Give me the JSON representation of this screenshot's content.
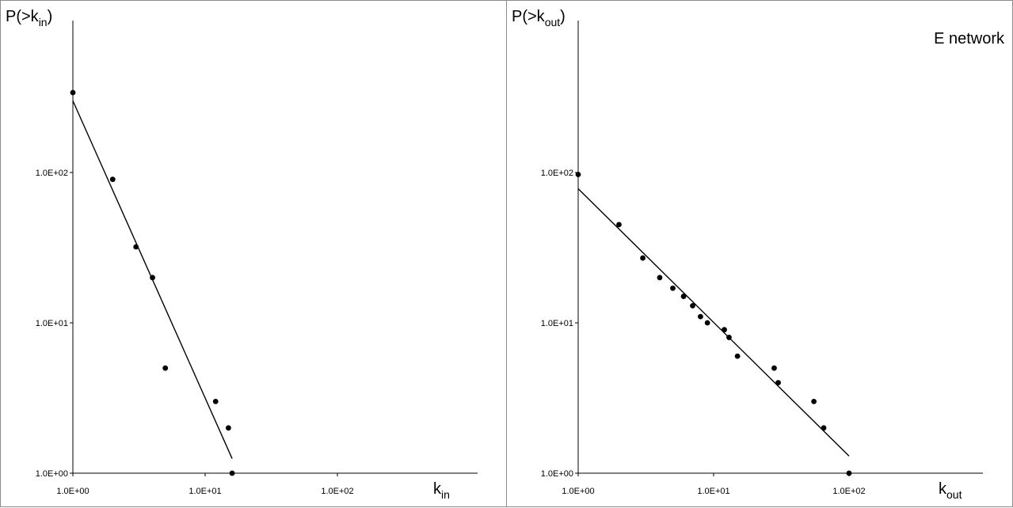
{
  "chart_data": [
    {
      "type": "scatter",
      "scale": "log-log",
      "xlabel": {
        "base": "k",
        "sub": "in"
      },
      "ylabel": {
        "prefix": "P(>k",
        "sub": "in",
        "suffix": ")"
      },
      "annotation": "",
      "xlim": [
        1,
        400
      ],
      "ylim": [
        1,
        400
      ],
      "x_ticks": [
        "1.0E+00",
        "1.0E+01",
        "1.0E+02"
      ],
      "y_ticks": [
        "1.0E+00",
        "1.0E+01",
        "1.0E+02"
      ],
      "points": [
        [
          1,
          340
        ],
        [
          2,
          90
        ],
        [
          3,
          32
        ],
        [
          4,
          20
        ],
        [
          5,
          5
        ],
        [
          12,
          3
        ],
        [
          15,
          2
        ],
        [
          16,
          1
        ]
      ],
      "fit": [
        [
          1,
          300
        ],
        [
          16,
          1.25
        ]
      ]
    },
    {
      "type": "scatter",
      "scale": "log-log",
      "xlabel": {
        "base": "k",
        "sub": "out"
      },
      "ylabel": {
        "prefix": "P(>k",
        "sub": "out",
        "suffix": ")"
      },
      "annotation": "E network",
      "xlim": [
        1,
        200
      ],
      "ylim": [
        1,
        400
      ],
      "x_ticks": [
        "1.0E+00",
        "1.0E+01",
        "1.0E+02"
      ],
      "y_ticks": [
        "1.0E+00",
        "1.0E+01",
        "1.0E+02"
      ],
      "points": [
        [
          1,
          97
        ],
        [
          2,
          45
        ],
        [
          3,
          27
        ],
        [
          4,
          20
        ],
        [
          5,
          17
        ],
        [
          6,
          15
        ],
        [
          7,
          13
        ],
        [
          8,
          11
        ],
        [
          9,
          10
        ],
        [
          12,
          9
        ],
        [
          13,
          8
        ],
        [
          15,
          6
        ],
        [
          28,
          5
        ],
        [
          30,
          4
        ],
        [
          55,
          3
        ],
        [
          65,
          2
        ],
        [
          100,
          1
        ]
      ],
      "fit": [
        [
          1,
          78
        ],
        [
          100,
          1.3
        ]
      ]
    }
  ]
}
